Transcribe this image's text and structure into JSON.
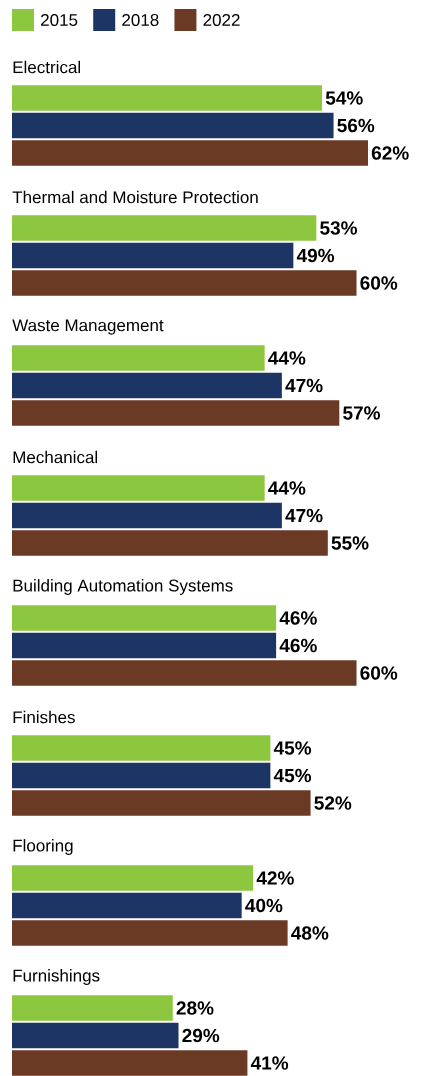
{
  "chart_data": {
    "type": "bar",
    "orientation": "horizontal",
    "legend": "top left",
    "categories": [
      "Electrical",
      "Thermal and Moisture Protection",
      "Waste Management",
      "Mechanical",
      "Building Automation Systems",
      "Finishes",
      "Flooring",
      "Furnishings"
    ],
    "series": [
      {
        "name": "2015",
        "color": "#8dc63f",
        "values": [
          54,
          53,
          44,
          44,
          46,
          45,
          42,
          28
        ],
        "value_labels": [
          "54%",
          "53%",
          "44%",
          "44%",
          "46%",
          "45%",
          "42%",
          "28%"
        ]
      },
      {
        "name": "2018",
        "color": "#1c3564",
        "values": [
          56,
          49,
          47,
          47,
          46,
          45,
          40,
          29
        ],
        "value_labels": [
          "56%",
          "49%",
          "47%",
          "47%",
          "46%",
          "45%",
          "40%",
          "29%"
        ]
      },
      {
        "name": "2022",
        "color": "#6b3a24",
        "values": [
          62,
          60,
          57,
          55,
          60,
          52,
          48,
          41
        ],
        "value_labels": [
          "62%",
          "60%",
          "57%",
          "55%",
          "60%",
          "52%",
          "48%",
          "41%"
        ]
      }
    ]
  }
}
